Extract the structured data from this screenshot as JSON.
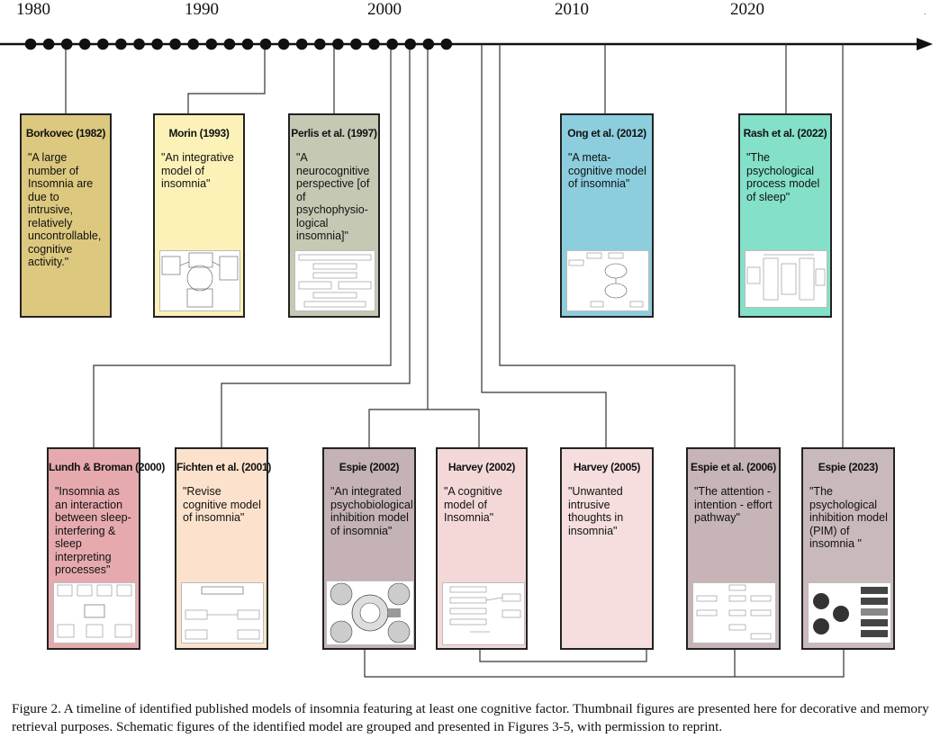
{
  "timeline": {
    "year_labels": [
      "1980",
      "1990",
      "2000",
      "2010",
      "2020"
    ]
  },
  "models": [
    {
      "title": "Borkovec (1982)",
      "quote": "\"A large number of Insomnia are due to intrusive, relatively uncontrollable, cognitive activity.\"",
      "color": "#dcc87e",
      "thumbnail": false
    },
    {
      "title": "Morin (1993)",
      "quote": "\"An integrative model of insomnia\"",
      "color": "#fcf2b8",
      "thumbnail": true
    },
    {
      "title": "Perlis et al. (1997)",
      "quote": "\"A neurocognitive perspective [of of psychophysio-logical insomnia]\"",
      "color": "#c5c9b4",
      "thumbnail": true
    },
    {
      "title": "Ong et al. (2012)",
      "quote": "\"A meta-cognitive model of insomnia\"",
      "color": "#8ccede",
      "thumbnail": true
    },
    {
      "title": "Rash et al. (2022)",
      "quote": "\"The psychological process model of sleep\"",
      "color": "#84e0c8",
      "thumbnail": true
    },
    {
      "title": "Lundh & Broman (2000)",
      "quote": "\"Insomnia as an interaction between sleep-interfering & sleep interpreting processes\"",
      "color": "#e6aaae",
      "thumbnail": true
    },
    {
      "title": "Fichten et al. (2001)",
      "quote": "\"Revise cognitive model of insomnia\"",
      "color": "#fce2cc",
      "thumbnail": true
    },
    {
      "title": "Espie (2002)",
      "quote": "\"An integrated psychobiological inhibition model of insomnia\"",
      "color": "#c4b2b4",
      "thumbnail": true
    },
    {
      "title": "Harvey (2002)",
      "quote": "\"A cognitive model of Insomnia\"",
      "color": "#f4d8d8",
      "thumbnail": true
    },
    {
      "title": "Harvey (2005)",
      "quote": "\"Unwanted intrusive thoughts in insomnia\"",
      "color": "#f6dede",
      "thumbnail": false
    },
    {
      "title": "Espie et al. (2006)",
      "quote": "\"The attention - intention - effort pathway\"",
      "color": "#c6b4b6",
      "thumbnail": true
    },
    {
      "title": "Espie (2023)",
      "quote": "\"The psychological inhibition model (PIM) of insomnia \"",
      "color": "#cab9bb",
      "thumbnail": true
    }
  ],
  "caption": "Figure 2. A timeline of identified published models of insomnia featuring at least one cognitive factor. Thumbnail figures are presented here for decorative and memory retrieval purposes. Schematic figures of the identified model are grouped and presented in Figures 3-5, with permission to reprint."
}
